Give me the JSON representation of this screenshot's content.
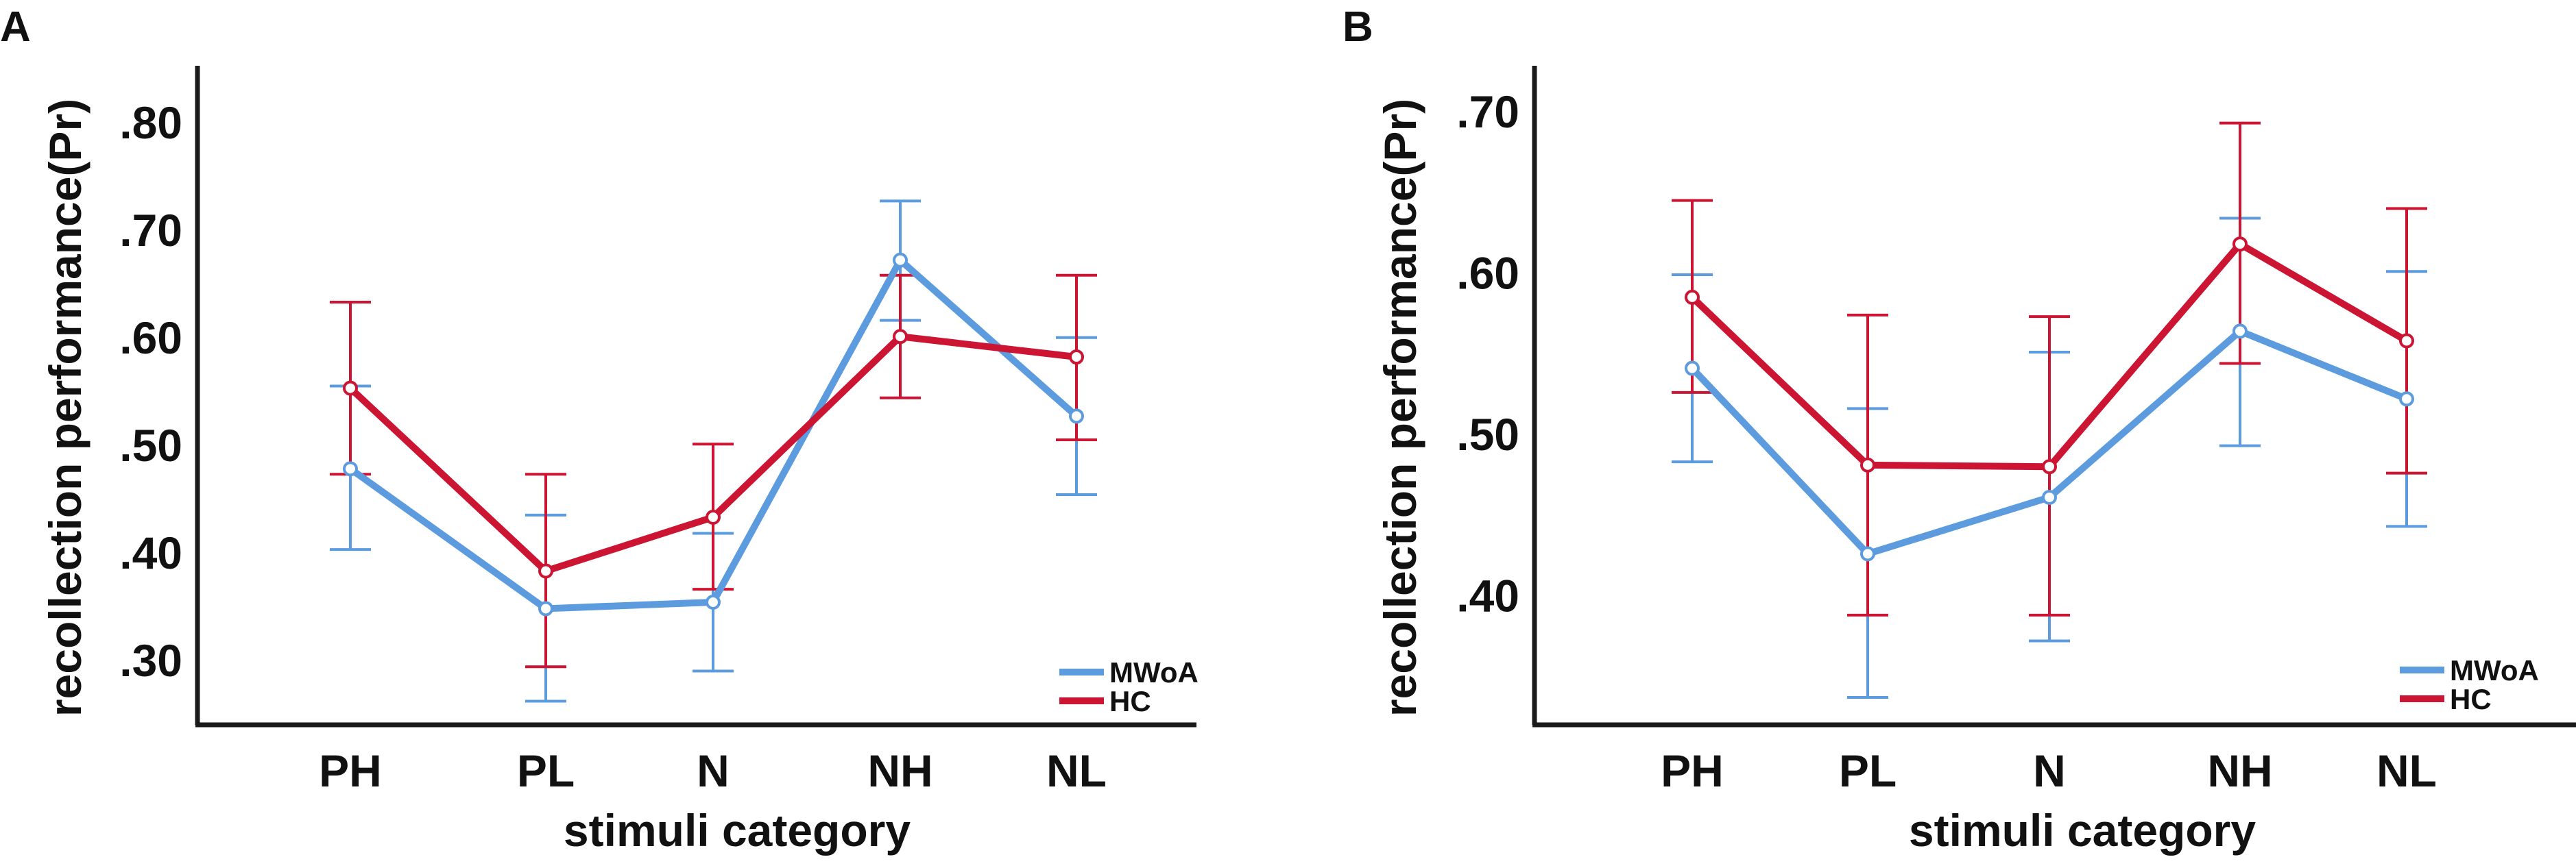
{
  "chart_data": [
    {
      "type": "line",
      "panel": "A",
      "categories": [
        "PH",
        "PL",
        "N",
        "NH",
        "NL"
      ],
      "xlabel": "stimuli category",
      "ylabel": "recollection performance(Pr)",
      "ylim": [
        0.24,
        0.84
      ],
      "yticks": [
        0.3,
        0.4,
        0.5,
        0.6,
        0.7,
        0.8
      ],
      "ytick_labels": [
        ".30",
        ".40",
        ".50",
        ".60",
        ".70",
        ".80"
      ],
      "legend_position": "bottom-right",
      "series": [
        {
          "name": "MWoA",
          "color": "#5b9bde",
          "values": [
            0.478,
            0.348,
            0.354,
            0.672,
            0.527
          ],
          "err_low": [
            0.403,
            0.262,
            0.29,
            0.616,
            0.454
          ],
          "err_high": [
            0.555,
            0.435,
            0.418,
            0.727,
            0.6
          ]
        },
        {
          "name": "HC",
          "color": "#cc1433",
          "values": [
            0.553,
            0.383,
            0.433,
            0.601,
            0.582
          ],
          "err_low": [
            0.473,
            0.294,
            0.366,
            0.544,
            0.505
          ],
          "err_high": [
            0.633,
            0.473,
            0.501,
            0.658,
            0.658
          ]
        }
      ]
    },
    {
      "type": "line",
      "panel": "B",
      "categories": [
        "PH",
        "PL",
        "N",
        "NH",
        "NL"
      ],
      "xlabel": "stimuli category",
      "ylabel": "recollection performance(Pr)",
      "ylim": [
        0.32,
        0.72
      ],
      "yticks": [
        0.4,
        0.5,
        0.6,
        0.7
      ],
      "ytick_labels": [
        ".40",
        ".50",
        ".60",
        ".70"
      ],
      "legend_position": "bottom-right",
      "series": [
        {
          "name": "MWoA",
          "color": "#5b9bde",
          "values": [
            0.541,
            0.426,
            0.461,
            0.564,
            0.522
          ],
          "err_low": [
            0.483,
            0.337,
            0.372,
            0.493,
            0.443
          ],
          "err_high": [
            0.599,
            0.516,
            0.551,
            0.634,
            0.601
          ]
        },
        {
          "name": "HC",
          "color": "#cc1433",
          "values": [
            0.585,
            0.481,
            0.48,
            0.618,
            0.558
          ],
          "err_low": [
            0.526,
            0.388,
            0.388,
            0.544,
            0.476
          ],
          "err_high": [
            0.645,
            0.574,
            0.573,
            0.693,
            0.64
          ]
        }
      ]
    }
  ]
}
